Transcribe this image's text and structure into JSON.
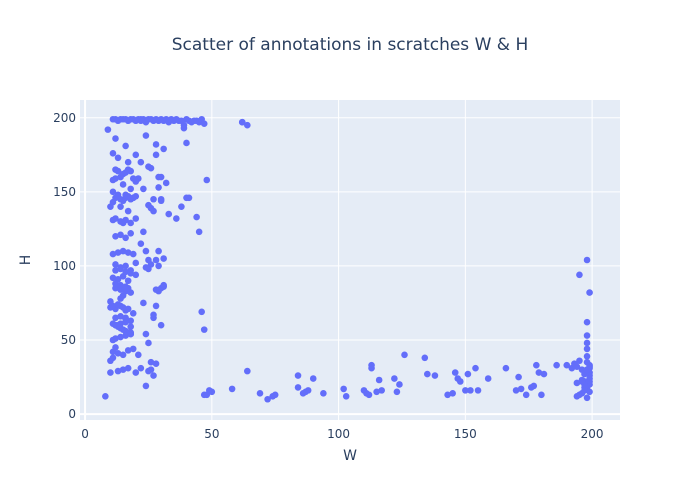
{
  "chart_data": {
    "type": "scatter",
    "title": "Scatter of annotations in scratches W & H",
    "xlabel": "W",
    "ylabel": "H",
    "xlim": [
      -2,
      211
    ],
    "ylim": [
      -4,
      212
    ],
    "x_ticks": [
      0,
      50,
      100,
      150,
      200
    ],
    "y_ticks": [
      0,
      50,
      100,
      150,
      200
    ],
    "grid": true,
    "legend": "none",
    "marker_color": "#636efa",
    "plot_bg": "#e5ecf6",
    "grid_color": "#ffffff",
    "text_color": "#2a3f5f",
    "series": [
      {
        "x": [
          9,
          10,
          10,
          11,
          11,
          11,
          12,
          12,
          12,
          13,
          13,
          14,
          14,
          15,
          15,
          15,
          16,
          16,
          16,
          17,
          17,
          17,
          18,
          18,
          19,
          19,
          20,
          20,
          21,
          21,
          22,
          22,
          23,
          23,
          24,
          24,
          25,
          25,
          26,
          26,
          27,
          27,
          28,
          28,
          29,
          29,
          30,
          30,
          31,
          31,
          32,
          32,
          33,
          33,
          34,
          35,
          36,
          37,
          38,
          39,
          40,
          41,
          42,
          43,
          44,
          45,
          46,
          47,
          62,
          64,
          11,
          12,
          13,
          14,
          15,
          16,
          17,
          18,
          19,
          20,
          11,
          12,
          13,
          14,
          15,
          16,
          17,
          18,
          19,
          20,
          11,
          12,
          14,
          16,
          18,
          20,
          12,
          14,
          16,
          18,
          11,
          13,
          15,
          17,
          19,
          12,
          14,
          16,
          18,
          20,
          11,
          13,
          15,
          17,
          12,
          14,
          16,
          18,
          10,
          12,
          14,
          16,
          11,
          12,
          13,
          14,
          15,
          16,
          17,
          18,
          12,
          14,
          16,
          18,
          11,
          13,
          15,
          17,
          19,
          12,
          14,
          16,
          18,
          20,
          11,
          13,
          15,
          17,
          12,
          14,
          16,
          18,
          10,
          13,
          15,
          17,
          11,
          12,
          14,
          16,
          18,
          12,
          14,
          16,
          22,
          24,
          25,
          26,
          29,
          31,
          30,
          28,
          27,
          24,
          25,
          28,
          29,
          31,
          27,
          30,
          26,
          25,
          28,
          30,
          29,
          22,
          26,
          27,
          30,
          33,
          24,
          25,
          28,
          29,
          23,
          31,
          36,
          38,
          40,
          41,
          44,
          45,
          46,
          47,
          48,
          40,
          39,
          47,
          58,
          62,
          64,
          69,
          72,
          74,
          75,
          84,
          84,
          86,
          87,
          88,
          90,
          94,
          102,
          103,
          110,
          111,
          112,
          113,
          113,
          115,
          116,
          117,
          122,
          123,
          124,
          126,
          134,
          135,
          138,
          143,
          145,
          146,
          147,
          148,
          150,
          151,
          152,
          154,
          155,
          159,
          166,
          170,
          171,
          172,
          174,
          176,
          177,
          178,
          179,
          180,
          181,
          186,
          190,
          192,
          193,
          194,
          195,
          195,
          196,
          196,
          197,
          197,
          197,
          198,
          198,
          198,
          198,
          198,
          198,
          199,
          199,
          199,
          199,
          199,
          199,
          199,
          198,
          197,
          196,
          195,
          194,
          198,
          199,
          198,
          199,
          198,
          197,
          196,
          198,
          199,
          194,
          8,
          50,
          48,
          49,
          28,
          26,
          27,
          25,
          22,
          23,
          21,
          18,
          19,
          16,
          17,
          15,
          14,
          13,
          12,
          11,
          10,
          20,
          24
        ],
        "y": [
          192,
          140,
          76,
          199,
          176,
          150,
          199,
          186,
          165,
          198,
          173,
          199,
          140,
          199,
          162,
          129,
          199,
          181,
          148,
          198,
          170,
          137,
          199,
          164,
          199,
          146,
          198,
          175,
          199,
          159,
          198,
          170,
          199,
          152,
          197,
          188,
          199,
          141,
          199,
          166,
          198,
          145,
          199,
          182,
          198,
          160,
          199,
          144,
          198,
          179,
          199,
          156,
          198,
          197,
          199,
          198,
          199,
          198,
          198,
          195,
          199,
          198,
          197,
          198,
          198,
          197,
          199,
          196,
          197,
          195,
          158,
          159,
          164,
          160,
          155,
          163,
          165,
          152,
          159,
          157,
          143,
          146,
          148,
          145,
          144,
          146,
          147,
          145,
          146,
          147,
          131,
          132,
          130,
          131,
          129,
          132,
          120,
          121,
          119,
          122,
          108,
          109,
          110,
          109,
          108,
          101,
          99,
          100,
          97,
          102,
          92,
          91,
          93,
          90,
          85,
          84,
          83,
          82,
          72,
          71,
          73,
          70,
          61,
          60,
          59,
          58,
          57,
          56,
          55,
          54,
          65,
          66,
          64,
          63,
          42,
          41,
          40,
          43,
          44,
          97,
          98,
          96,
          95,
          94,
          73,
          74,
          72,
          71,
          60,
          61,
          62,
          59,
          28,
          29,
          30,
          31,
          50,
          51,
          52,
          53,
          54,
          88,
          87,
          86,
          115,
          110,
          104,
          101,
          100,
          86,
          85,
          73,
          67,
          54,
          48,
          104,
          110,
          105,
          65,
          60,
          35,
          167,
          175,
          160,
          153,
          199,
          139,
          137,
          145,
          135,
          99,
          98,
          84,
          83,
          123,
          87,
          132,
          140,
          146,
          146,
          133,
          123,
          69,
          57,
          158,
          183,
          193,
          13,
          17,
          197,
          29,
          14,
          10,
          12,
          13,
          26,
          18,
          14,
          15,
          16,
          24,
          14,
          17,
          12,
          16,
          14,
          13,
          33,
          31,
          15,
          23,
          16,
          24,
          15,
          20,
          40,
          38,
          27,
          26,
          13,
          14,
          28,
          24,
          22,
          16,
          27,
          16,
          31,
          16,
          24,
          31,
          16,
          25,
          17,
          13,
          18,
          19,
          33,
          28,
          13,
          27,
          33,
          33,
          31,
          34,
          32,
          36,
          94,
          30,
          23,
          18,
          22,
          27,
          62,
          53,
          48,
          44,
          39,
          35,
          33,
          31,
          28,
          26,
          24,
          22,
          20,
          18,
          16,
          14,
          13,
          12,
          11,
          15,
          30,
          32,
          21,
          20,
          22,
          104,
          82,
          21,
          12,
          15,
          13,
          16,
          34,
          30,
          26,
          29,
          31,
          75,
          40,
          55,
          68,
          65,
          85,
          80,
          78,
          60,
          45,
          38,
          36,
          28,
          19
        ]
      }
    ]
  }
}
